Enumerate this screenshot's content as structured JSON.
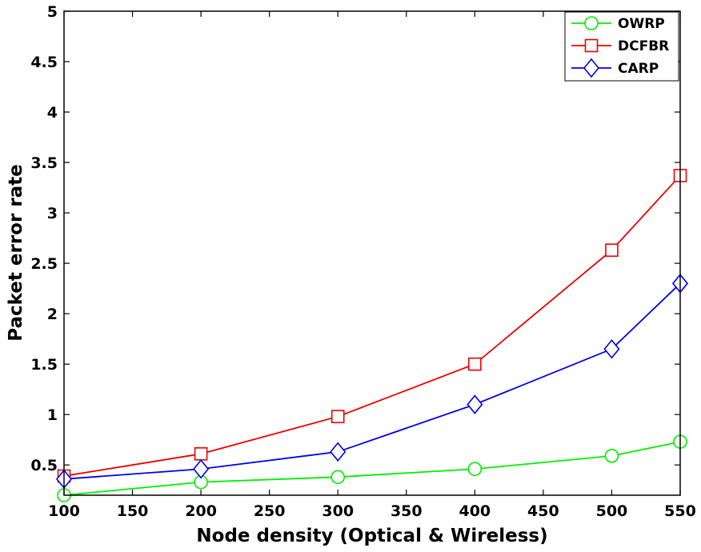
{
  "chart_data": {
    "type": "line",
    "title": "",
    "xlabel": "Node density (Optical & Wireless)",
    "ylabel": "Packet error rate",
    "x": [
      100,
      200,
      300,
      400,
      500,
      550
    ],
    "xlim": [
      100,
      550
    ],
    "ylim": [
      0.2,
      5
    ],
    "xticks": [
      100,
      150,
      200,
      250,
      300,
      350,
      400,
      450,
      500,
      550
    ],
    "yticks": [
      0.5,
      1,
      1.5,
      2,
      2.5,
      3,
      3.5,
      4,
      4.5,
      5
    ],
    "ytick_labels": [
      "0.5",
      "1",
      "1.5",
      "2",
      "2.5",
      "3",
      "3.5",
      "4",
      "4.5",
      "5"
    ],
    "grid": false,
    "legend_position": "top-right",
    "series": [
      {
        "name": "OWRP",
        "color": "#00ee00",
        "marker": "circle",
        "values": [
          0.2,
          0.33,
          0.38,
          0.46,
          0.59,
          0.73
        ]
      },
      {
        "name": "DCFBR",
        "color": "#ee0000",
        "marker": "square",
        "values": [
          0.39,
          0.61,
          0.98,
          1.5,
          2.63,
          3.37
        ]
      },
      {
        "name": "CARP",
        "color": "#0000ee",
        "marker": "diamond",
        "values": [
          0.36,
          0.46,
          0.63,
          1.1,
          1.65,
          2.3
        ]
      }
    ]
  }
}
